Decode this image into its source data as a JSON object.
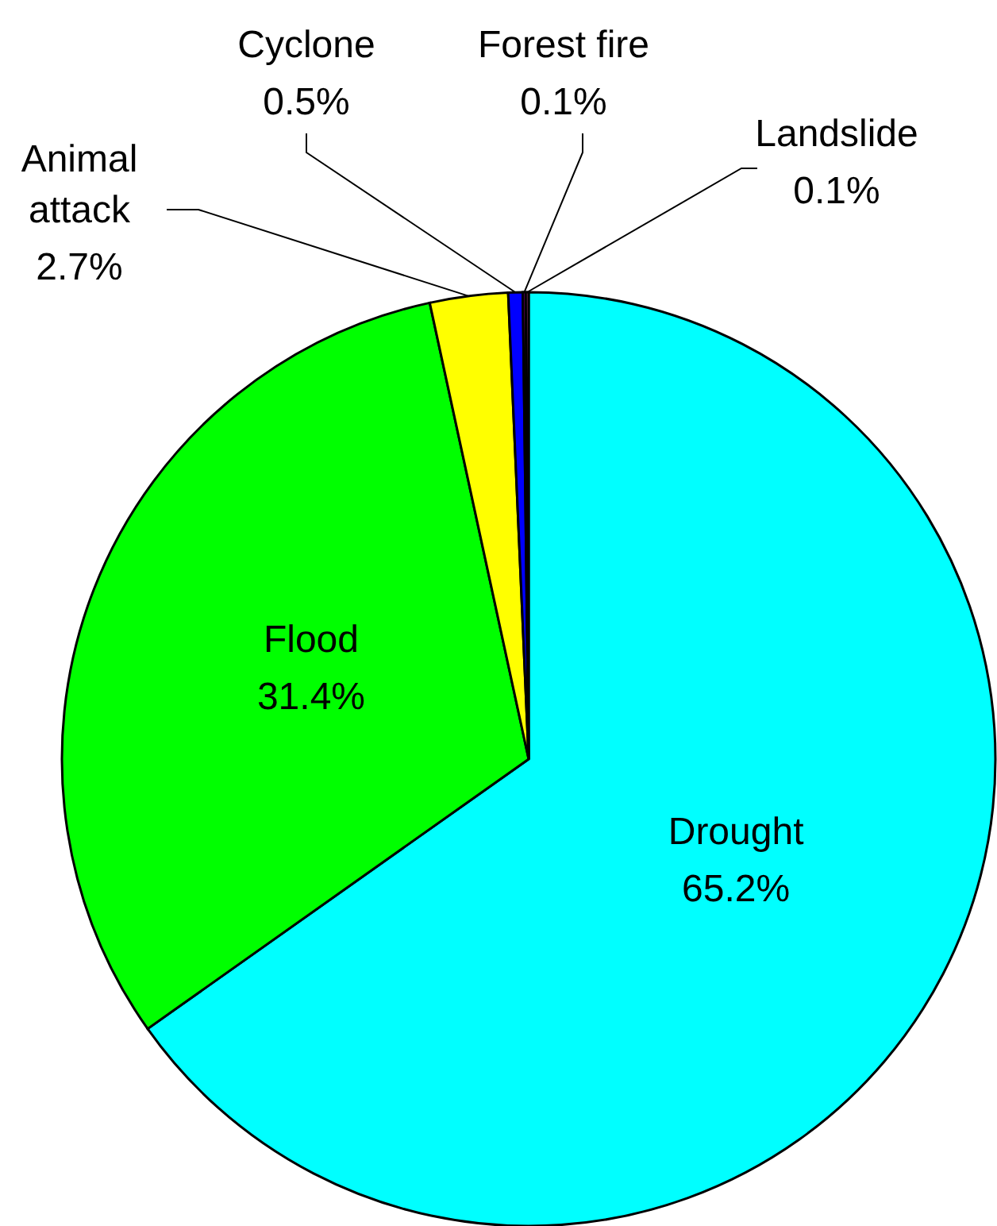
{
  "chart_data": {
    "type": "pie",
    "categories": [
      "Drought",
      "Flood",
      "Animal attack",
      "Cyclone",
      "Forest fire",
      "Landslide"
    ],
    "values": [
      65.2,
      31.4,
      2.7,
      0.5,
      0.1,
      0.1
    ],
    "colors": [
      "#00ffff",
      "#00ff00",
      "#ffff00",
      "#0000ff",
      "#800080",
      "#993366"
    ],
    "value_labels": [
      "65.2%",
      "31.4%",
      "2.7%",
      "0.5%",
      "0.1%",
      "0.1%"
    ]
  }
}
